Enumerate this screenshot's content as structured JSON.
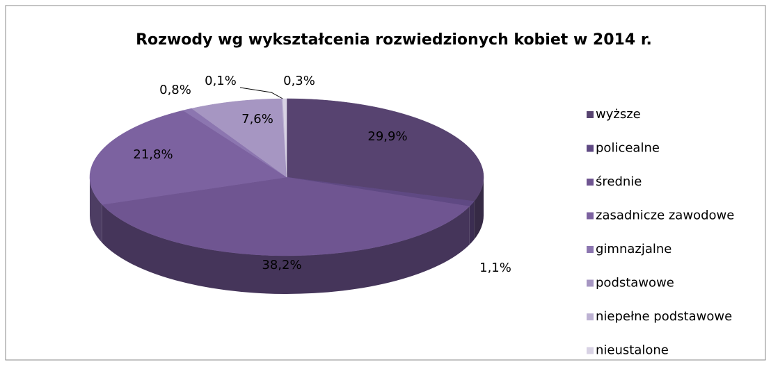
{
  "chart_data": {
    "type": "pie3d",
    "title": "Rozwody wg wykształcenia rozwiedzionych kobiet w 2014 r.",
    "categories": [
      "wyższe",
      "policealne",
      "średnie",
      "zasadnicze zawodowe",
      "gimnazjalne",
      "podstawowe",
      "niepełne podstawowe",
      "nieustalone"
    ],
    "values": [
      29.9,
      1.1,
      38.2,
      21.8,
      0.8,
      7.6,
      0.1,
      0.3
    ],
    "value_labels": [
      "29,9%",
      "1,1%",
      "38,2%",
      "21,8%",
      "0,8%",
      "7,6%",
      "0,1%",
      "0,3%"
    ],
    "colors": [
      "#574370",
      "#5f4983",
      "#6f5591",
      "#7c62a0",
      "#8c76b0",
      "#a696c2",
      "#bdb2d3",
      "#d8d2e4"
    ],
    "legend": "right"
  }
}
